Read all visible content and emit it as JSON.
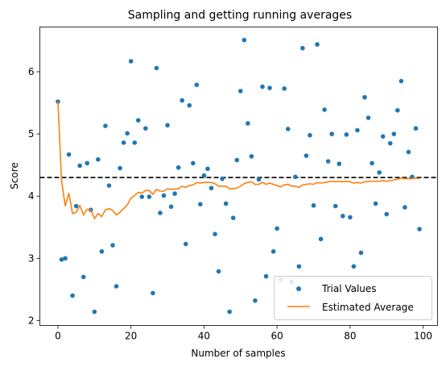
{
  "chart_data": {
    "type": "scatter",
    "title": "Sampling and getting running averages",
    "xlabel": "Number of samples",
    "ylabel": "Score",
    "xlim": [
      -4.95,
      103.95
    ],
    "ylim": [
      1.92,
      6.72
    ],
    "xticks": [
      0,
      20,
      40,
      60,
      80,
      100
    ],
    "yticks": [
      2,
      3,
      4,
      5,
      6
    ],
    "grid": false,
    "legend_position": "lower right",
    "reference_line": {
      "y": 4.3,
      "style": "dashed",
      "color": "#000000"
    },
    "series": [
      {
        "name": "Trial Values",
        "kind": "scatter",
        "color": "#1f77b4",
        "x": [
          0,
          1,
          2,
          3,
          4,
          5,
          6,
          7,
          8,
          9,
          10,
          11,
          12,
          13,
          14,
          15,
          16,
          17,
          18,
          19,
          20,
          21,
          22,
          23,
          24,
          25,
          26,
          27,
          28,
          29,
          30,
          31,
          32,
          33,
          34,
          35,
          36,
          37,
          38,
          39,
          40,
          41,
          42,
          43,
          44,
          45,
          46,
          47,
          48,
          49,
          50,
          51,
          52,
          53,
          54,
          55,
          56,
          57,
          58,
          59,
          60,
          61,
          62,
          63,
          64,
          65,
          66,
          67,
          68,
          69,
          70,
          71,
          72,
          73,
          74,
          75,
          76,
          77,
          78,
          79,
          80,
          81,
          82,
          83,
          84,
          85,
          86,
          87,
          88,
          89,
          90,
          91,
          92,
          93,
          94,
          95,
          96,
          97,
          98,
          99
        ],
        "y": [
          5.52,
          2.98,
          3.0,
          4.67,
          2.4,
          3.84,
          4.49,
          2.7,
          4.53,
          3.78,
          2.14,
          4.59,
          3.11,
          5.13,
          4.17,
          3.21,
          2.55,
          4.45,
          4.86,
          5.01,
          6.17,
          4.86,
          5.22,
          3.99,
          5.09,
          3.99,
          2.44,
          6.06,
          3.73,
          4.01,
          5.14,
          3.83,
          4.04,
          4.46,
          5.54,
          3.23,
          5.46,
          4.53,
          5.79,
          3.87,
          4.33,
          4.44,
          4.13,
          3.39,
          2.79,
          4.28,
          3.88,
          2.14,
          3.65,
          4.58,
          5.69,
          6.51,
          5.17,
          4.64,
          2.32,
          4.27,
          5.76,
          2.71,
          5.74,
          3.11,
          3.48,
          2.66,
          5.73,
          5.08,
          2.62,
          4.31,
          2.87,
          6.38,
          4.65,
          4.98,
          3.85,
          6.44,
          3.31,
          5.39,
          4.56,
          5.0,
          3.84,
          4.52,
          3.68,
          4.99,
          3.66,
          2.87,
          5.06,
          3.09,
          5.59,
          5.26,
          4.53,
          3.88,
          4.38,
          4.96,
          3.71,
          4.85,
          5.0,
          5.38,
          5.85,
          3.82,
          4.71,
          4.31,
          5.09,
          3.47
        ]
      },
      {
        "name": "Estimated Average",
        "kind": "line",
        "color": "#ff7f0e",
        "x": [
          0,
          1,
          2,
          3,
          4,
          5,
          6,
          7,
          8,
          9,
          10,
          11,
          12,
          13,
          14,
          15,
          16,
          17,
          18,
          19,
          20,
          21,
          22,
          23,
          24,
          25,
          26,
          27,
          28,
          29,
          30,
          31,
          32,
          33,
          34,
          35,
          36,
          37,
          38,
          39,
          40,
          41,
          42,
          43,
          44,
          45,
          46,
          47,
          48,
          49,
          50,
          51,
          52,
          53,
          54,
          55,
          56,
          57,
          58,
          59,
          60,
          61,
          62,
          63,
          64,
          65,
          66,
          67,
          68,
          69,
          70,
          71,
          72,
          73,
          74,
          75,
          76,
          77,
          78,
          79,
          80,
          81,
          82,
          83,
          84,
          85,
          86,
          87,
          88,
          89,
          90,
          91,
          92,
          93,
          94,
          95,
          96,
          97,
          98,
          99
        ],
        "y": [
          5.52,
          4.25,
          3.84,
          4.05,
          3.72,
          3.74,
          3.85,
          3.7,
          3.79,
          3.78,
          3.64,
          3.72,
          3.67,
          3.78,
          3.8,
          3.77,
          3.7,
          3.74,
          3.8,
          3.86,
          3.97,
          4.01,
          4.06,
          4.05,
          4.09,
          4.09,
          4.03,
          4.11,
          4.08,
          4.08,
          4.12,
          4.11,
          4.11,
          4.12,
          4.16,
          4.14,
          4.17,
          4.18,
          4.22,
          4.21,
          4.22,
          4.22,
          4.22,
          4.2,
          4.16,
          4.16,
          4.16,
          4.12,
          4.12,
          4.13,
          4.16,
          4.2,
          4.22,
          4.23,
          4.19,
          4.19,
          4.22,
          4.19,
          4.21,
          4.19,
          4.17,
          4.15,
          4.18,
          4.19,
          4.16,
          4.16,
          4.14,
          4.18,
          4.19,
          4.2,
          4.19,
          4.22,
          4.21,
          4.22,
          4.23,
          4.24,
          4.23,
          4.24,
          4.23,
          4.24,
          4.23,
          4.21,
          4.22,
          4.21,
          4.23,
          4.24,
          4.24,
          4.24,
          4.24,
          4.25,
          4.24,
          4.25,
          4.26,
          4.27,
          4.29,
          4.28,
          4.28,
          4.28,
          4.29,
          4.28
        ]
      }
    ]
  }
}
